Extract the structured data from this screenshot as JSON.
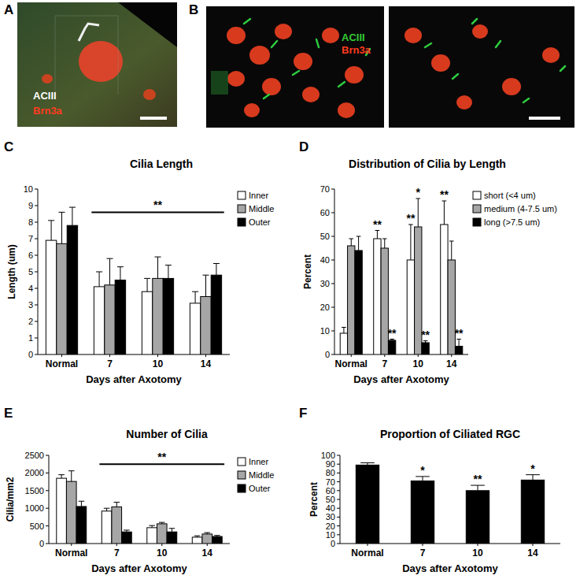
{
  "images": [
    {
      "panel": "A",
      "labels": [
        {
          "text": "ACIII",
          "color": "#ffffff"
        },
        {
          "text": "Brn3a",
          "color": "#ff3b1f"
        }
      ]
    },
    {
      "panel": "B",
      "labels": [
        {
          "text": "ACIII",
          "color": "#33cc33"
        },
        {
          "text": "Brn3a",
          "color": "#ff3b1f"
        }
      ]
    }
  ],
  "chart_data": [
    {
      "type": "bar",
      "panel": "C",
      "title": "Cilia Length",
      "x_label": "Days after Axotomy",
      "y_label": "Length (um)",
      "categories": [
        "Normal",
        "7",
        "10",
        "14"
      ],
      "series": [
        {
          "name": "Inner",
          "color": "#ffffff",
          "values": [
            6.9,
            4.1,
            3.8,
            3.1
          ],
          "errors": [
            1.2,
            0.9,
            0.8,
            0.7
          ]
        },
        {
          "name": "Middle",
          "color": "#a6a6a6",
          "values": [
            6.7,
            4.2,
            4.6,
            3.5
          ],
          "errors": [
            1.9,
            1.6,
            1.3,
            1.3
          ]
        },
        {
          "name": "Outer",
          "color": "#000000",
          "values": [
            7.8,
            4.5,
            4.6,
            4.8
          ],
          "errors": [
            1.1,
            0.8,
            0.8,
            0.7
          ]
        }
      ],
      "ylim": [
        0,
        10
      ],
      "yticks": [
        0,
        1,
        2,
        3,
        4,
        5,
        6,
        7,
        8,
        9,
        10
      ],
      "legend": "right",
      "annotations": [
        {
          "text": "**",
          "x": [
            "7",
            "14"
          ],
          "y": 8.6
        }
      ]
    },
    {
      "type": "bar",
      "panel": "D",
      "title": "Distribution of Cilia by Length",
      "x_label": "Days after Axotomy",
      "y_label": "Percent",
      "categories": [
        "Normal",
        "7",
        "10",
        "14"
      ],
      "series": [
        {
          "name": "short (<4 um)",
          "color": "#ffffff",
          "values": [
            9,
            49,
            40,
            55
          ],
          "errors": [
            2.5,
            3.5,
            15,
            10
          ],
          "significance": [
            null,
            "**",
            "**",
            "**"
          ]
        },
        {
          "name": "medium (4-7.5 um)",
          "color": "#a6a6a6",
          "values": [
            46,
            45,
            54,
            40
          ],
          "errors": [
            3,
            4,
            12,
            8
          ],
          "significance": [
            null,
            null,
            "*",
            null
          ]
        },
        {
          "name": "long (>7.5 um)",
          "color": "#000000",
          "values": [
            44,
            6,
            5,
            3.5
          ],
          "errors": [
            6,
            0.5,
            0.8,
            3
          ],
          "significance": [
            null,
            "**",
            "**",
            "**"
          ]
        }
      ],
      "ylim": [
        0,
        70
      ],
      "yticks": [
        0,
        10,
        20,
        30,
        40,
        50,
        60,
        70
      ],
      "legend": "right"
    },
    {
      "type": "bar",
      "panel": "E",
      "title": "Number of Cilia",
      "x_label": "Days after Axotomy",
      "y_label": "Cilia/mm2",
      "categories": [
        "Normal",
        "7",
        "10",
        "14"
      ],
      "series": [
        {
          "name": "Inner",
          "color": "#ffffff",
          "values": [
            1850,
            920,
            450,
            180
          ],
          "errors": [
            100,
            80,
            60,
            40
          ]
        },
        {
          "name": "Middle",
          "color": "#a6a6a6",
          "values": [
            1760,
            1040,
            560,
            270
          ],
          "errors": [
            300,
            130,
            40,
            40
          ]
        },
        {
          "name": "Outer",
          "color": "#000000",
          "values": [
            1050,
            330,
            330,
            200
          ],
          "errors": [
            150,
            50,
            100,
            30
          ]
        }
      ],
      "ylim": [
        0,
        2500
      ],
      "yticks": [
        0,
        500,
        1000,
        1500,
        2000,
        2500
      ],
      "legend": "right",
      "annotations": [
        {
          "text": "**",
          "x": [
            "7",
            "14"
          ],
          "y": 2250
        }
      ]
    },
    {
      "type": "bar",
      "panel": "F",
      "title": "Proportion of Ciliated RGC",
      "x_label": "Days after Axotomy",
      "y_label": "Percent",
      "categories": [
        "Normal",
        "7",
        "10",
        "14"
      ],
      "series": [
        {
          "name": "Proportion of Ciliated RGC",
          "color": "#000000",
          "values": [
            89,
            71,
            60,
            72
          ],
          "errors": [
            2.5,
            5,
            6,
            6
          ],
          "significance": [
            null,
            "*",
            "**",
            "*"
          ]
        }
      ],
      "ylim": [
        0,
        100
      ],
      "yticks": [
        0,
        10,
        20,
        30,
        40,
        50,
        60,
        70,
        80,
        90,
        100
      ]
    }
  ]
}
